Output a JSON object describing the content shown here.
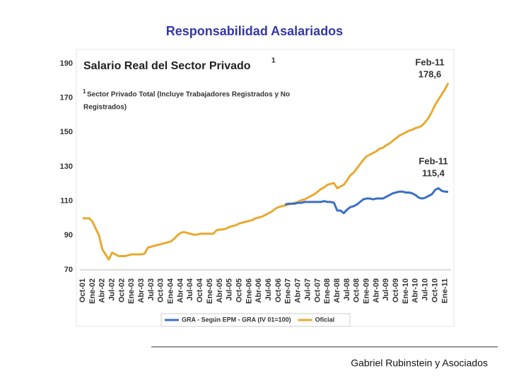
{
  "page_title": "Responsabilidad Asalariados",
  "footer": "Gabriel Rubinstein y Asociados",
  "chart_data": {
    "type": "line",
    "title": "Salario Real del Sector Privado",
    "title_note_marker": "1",
    "footnote_marker": "1",
    "footnote": [
      "Sector Privado Total (Incluye Trabajadores Registrados y No",
      "Registrados)"
    ],
    "annotations": [
      {
        "label": "Feb-11",
        "value": "178,6"
      },
      {
        "label": "Feb-11",
        "value": "115,4"
      }
    ],
    "categories": [
      "Oct-01",
      null,
      null,
      "Ene-02",
      null,
      null,
      "Abr-02",
      null,
      null,
      "Jul-02",
      null,
      null,
      "Oct-02",
      null,
      null,
      "Ene-03",
      null,
      null,
      "Abr-03",
      null,
      null,
      "Jul-03",
      null,
      null,
      "Oct-03",
      null,
      null,
      "Ene-04",
      null,
      null,
      "Abr-04",
      null,
      null,
      "Jul-04",
      null,
      null,
      "Oct-04",
      null,
      null,
      "Ene-05",
      null,
      null,
      "Abr-05",
      null,
      null,
      "Jul-05",
      null,
      null,
      "Oct-05",
      null,
      null,
      "Ene-06",
      null,
      null,
      "Abr-06",
      null,
      null,
      "Jul-06",
      null,
      null,
      "Oct-06",
      null,
      null,
      "Ene-07",
      null,
      null,
      "Abr-07",
      null,
      null,
      "Jul-07",
      null,
      null,
      "Oct-07",
      null,
      null,
      "Ene-08",
      null,
      null,
      "Abr-08",
      null,
      null,
      "Jul-08",
      null,
      null,
      "Oct-08",
      null,
      null,
      "Ene-09",
      null,
      null,
      "Abr-09",
      null,
      null,
      "Jul-09",
      null,
      null,
      "Oct-09",
      null,
      null,
      "Ene-10",
      null,
      null,
      "Abr-10",
      null,
      null,
      "Jul-10",
      null,
      null,
      "Oct-10",
      null,
      null,
      "Ene-11",
      null
    ],
    "series": [
      {
        "name": "GRA - Según EPM - GRA (IV 01=100)",
        "color": "#3b6fc6",
        "values": [
          null,
          null,
          null,
          null,
          null,
          null,
          null,
          null,
          null,
          null,
          null,
          null,
          null,
          null,
          null,
          null,
          null,
          null,
          null,
          null,
          null,
          null,
          null,
          null,
          null,
          null,
          null,
          null,
          null,
          null,
          null,
          null,
          null,
          null,
          null,
          null,
          null,
          null,
          null,
          null,
          null,
          null,
          null,
          null,
          null,
          null,
          null,
          null,
          null,
          null,
          null,
          null,
          null,
          null,
          null,
          null,
          null,
          null,
          null,
          null,
          null,
          null,
          108,
          108.5,
          108.5,
          108.5,
          109,
          109,
          109.5,
          109.5,
          109.5,
          109.5,
          109.5,
          109.5,
          110,
          109.5,
          109.5,
          109,
          104.5,
          104.5,
          103,
          105,
          106.5,
          107,
          108,
          109.5,
          111,
          111.5,
          111.5,
          111,
          111.5,
          111.5,
          111.5,
          112.5,
          113.5,
          114.5,
          115,
          115.5,
          115.5,
          115,
          115,
          114.5,
          113.5,
          112,
          111.5,
          112,
          113,
          114,
          116.5,
          117.5,
          116,
          115.5,
          115.4
        ]
      },
      {
        "name": "Oficial",
        "color": "#e9a92f",
        "values": [
          100,
          100,
          100,
          98,
          94,
          90,
          82,
          79,
          76,
          80,
          79,
          78,
          78,
          78,
          78.5,
          79,
          79,
          79,
          79,
          79.5,
          83,
          83.5,
          84,
          84.5,
          85,
          85.5,
          86,
          86.5,
          88,
          90,
          91.5,
          92,
          91.5,
          91,
          90.5,
          90.5,
          91,
          91,
          91,
          91,
          91,
          93,
          93.5,
          93.5,
          94,
          95,
          95.5,
          96,
          97,
          97.5,
          98,
          98.5,
          99,
          100,
          100.5,
          101,
          102,
          103,
          104,
          105.5,
          106.5,
          107,
          107.5,
          108,
          108.5,
          109,
          109.5,
          110.5,
          111,
          112,
          113,
          114,
          115.5,
          117,
          118,
          119.5,
          120,
          120.5,
          117.5,
          118.5,
          119.5,
          122,
          125,
          126.5,
          129,
          131.5,
          134,
          136,
          137,
          138,
          139,
          140.5,
          141,
          142.5,
          143.5,
          145,
          146.5,
          148,
          149,
          150,
          151,
          151.5,
          152.5,
          153,
          154,
          156,
          158.5,
          162,
          166,
          169,
          172,
          175,
          178.6
        ]
      }
    ],
    "ylim": [
      70,
      190
    ],
    "yticks": [
      70,
      90,
      110,
      130,
      150,
      170,
      190
    ],
    "grid": false,
    "legend": "bottom"
  }
}
